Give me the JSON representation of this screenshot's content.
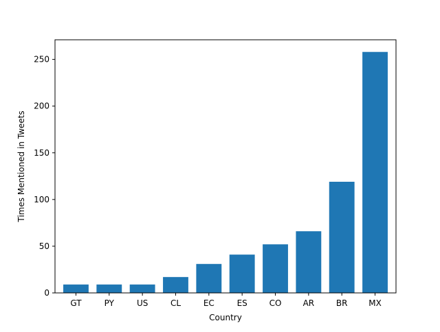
{
  "chart_data": {
    "type": "bar",
    "title": "",
    "xlabel": "Country",
    "ylabel": "Times Mentioned in Tweets",
    "categories": [
      "GT",
      "PY",
      "US",
      "CL",
      "EC",
      "ES",
      "CO",
      "AR",
      "BR",
      "MX"
    ],
    "values": [
      9,
      9,
      9,
      17,
      31,
      41,
      52,
      66,
      119,
      258
    ],
    "ylim": [
      0,
      271
    ],
    "yticks": [
      0,
      50,
      100,
      150,
      200,
      250
    ],
    "grid": false,
    "legend": "none",
    "bar_color": "#1f77b4"
  }
}
